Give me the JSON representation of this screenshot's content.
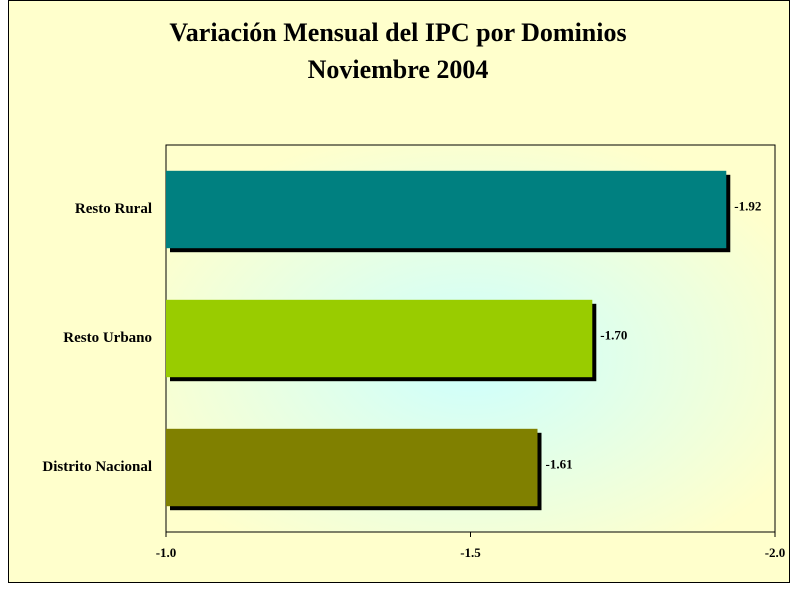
{
  "chart_data": {
    "type": "barh",
    "title": "Variación Mensual  del IPC por Dominios",
    "subtitle": "Noviembre 2004",
    "categories": [
      "Resto Rural",
      "Resto Urbano",
      "Distrito Nacional"
    ],
    "values": [
      -1.92,
      -1.7,
      -1.61
    ],
    "value_labels": [
      "-1.92",
      "-1.70",
      "-1.61"
    ],
    "colors": [
      "#008080",
      "#99cc00",
      "#808000"
    ],
    "xlim": [
      -1,
      -2
    ],
    "xticks": [
      {
        "value": -1,
        "label": "-1.0"
      },
      -1.5,
      {
        "value": -2,
        "label": "-2.0"
      }
    ],
    "grid": false
  }
}
